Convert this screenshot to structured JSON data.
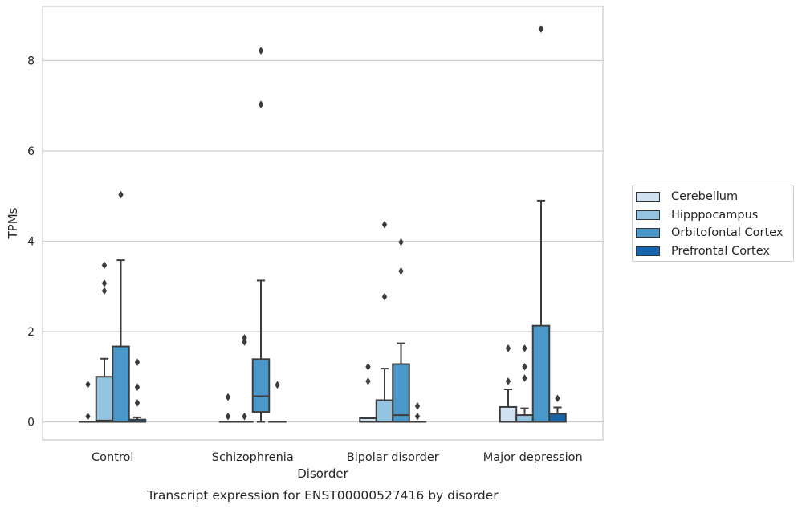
{
  "chart_data": {
    "type": "box",
    "xlabel": "Disorder",
    "ylabel": "TPMs",
    "caption": "Transcript expression for ENST00000527416 by disorder",
    "categories": [
      "Control",
      "Schizophrenia",
      "Bipolar disorder",
      "Major depression"
    ],
    "ylim": [
      -0.4,
      9.2
    ],
    "yticks": [
      "0",
      "2",
      "4",
      "6",
      "8"
    ],
    "grid": true,
    "legend_position": "right",
    "colors": {
      "Cerebellum": "#d0e1f2",
      "Hipppocampus": "#94c4df",
      "Orbitofontal Cortex": "#4a98c9",
      "Prefrontal Cortex": "#1764ab"
    },
    "series": [
      {
        "name": "Cerebellum",
        "boxes": [
          {
            "q1": 0,
            "median": 0,
            "q3": 0,
            "whisker_low": 0,
            "whisker_high": 0,
            "outliers": [
              0.12,
              0.83
            ]
          },
          {
            "q1": 0,
            "median": 0,
            "q3": 0,
            "whisker_low": 0,
            "whisker_high": 0,
            "outliers": [
              0.12,
              0.55
            ]
          },
          {
            "q1": 0,
            "median": 0,
            "q3": 0.08,
            "whisker_low": 0,
            "whisker_high": 0.08,
            "outliers": [
              0.9,
              1.22
            ]
          },
          {
            "q1": 0,
            "median": 0,
            "q3": 0.33,
            "whisker_low": 0,
            "whisker_high": 0.72,
            "outliers": [
              0.9,
              1.63
            ]
          }
        ]
      },
      {
        "name": "Hipppocampus",
        "boxes": [
          {
            "q1": 0,
            "median": 0.03,
            "q3": 1.0,
            "whisker_low": 0,
            "whisker_high": 1.4,
            "outliers": [
              2.9,
              3.07,
              3.47
            ]
          },
          {
            "q1": 0,
            "median": 0,
            "q3": 0,
            "whisker_low": 0,
            "whisker_high": 0,
            "outliers": [
              0.12,
              1.77,
              1.86
            ]
          },
          {
            "q1": 0,
            "median": 0,
            "q3": 0.48,
            "whisker_low": 0,
            "whisker_high": 1.18,
            "outliers": [
              2.77,
              4.37
            ]
          },
          {
            "q1": 0,
            "median": 0,
            "q3": 0.15,
            "whisker_low": 0,
            "whisker_high": 0.3,
            "outliers": [
              0.97,
              1.22,
              1.63
            ]
          }
        ]
      },
      {
        "name": "Orbitofontal Cortex",
        "boxes": [
          {
            "q1": 0,
            "median": 0,
            "q3": 1.67,
            "whisker_low": 0,
            "whisker_high": 3.58,
            "outliers": [
              5.03
            ]
          },
          {
            "q1": 0.22,
            "median": 0.57,
            "q3": 1.39,
            "whisker_low": 0,
            "whisker_high": 3.13,
            "outliers": [
              7.03,
              8.22
            ]
          },
          {
            "q1": 0,
            "median": 0.15,
            "q3": 1.28,
            "whisker_low": 0,
            "whisker_high": 1.74,
            "outliers": [
              3.34,
              3.98
            ]
          },
          {
            "q1": 0,
            "median": 0,
            "q3": 2.13,
            "whisker_low": 0,
            "whisker_high": 4.9,
            "outliers": [
              8.7
            ]
          }
        ]
      },
      {
        "name": "Prefrontal Cortex",
        "boxes": [
          {
            "q1": 0,
            "median": 0,
            "q3": 0.05,
            "whisker_low": 0,
            "whisker_high": 0.1,
            "outliers": [
              0.42,
              0.77,
              1.32
            ]
          },
          {
            "q1": 0,
            "median": 0,
            "q3": 0,
            "whisker_low": 0,
            "whisker_high": 0,
            "outliers": [
              0.82
            ]
          },
          {
            "q1": 0,
            "median": 0,
            "q3": 0,
            "whisker_low": 0,
            "whisker_high": 0,
            "outliers": [
              0.12,
              0.35
            ]
          },
          {
            "q1": 0,
            "median": 0,
            "q3": 0.18,
            "whisker_low": 0,
            "whisker_high": 0.32,
            "outliers": [
              0.52
            ]
          }
        ]
      }
    ]
  }
}
